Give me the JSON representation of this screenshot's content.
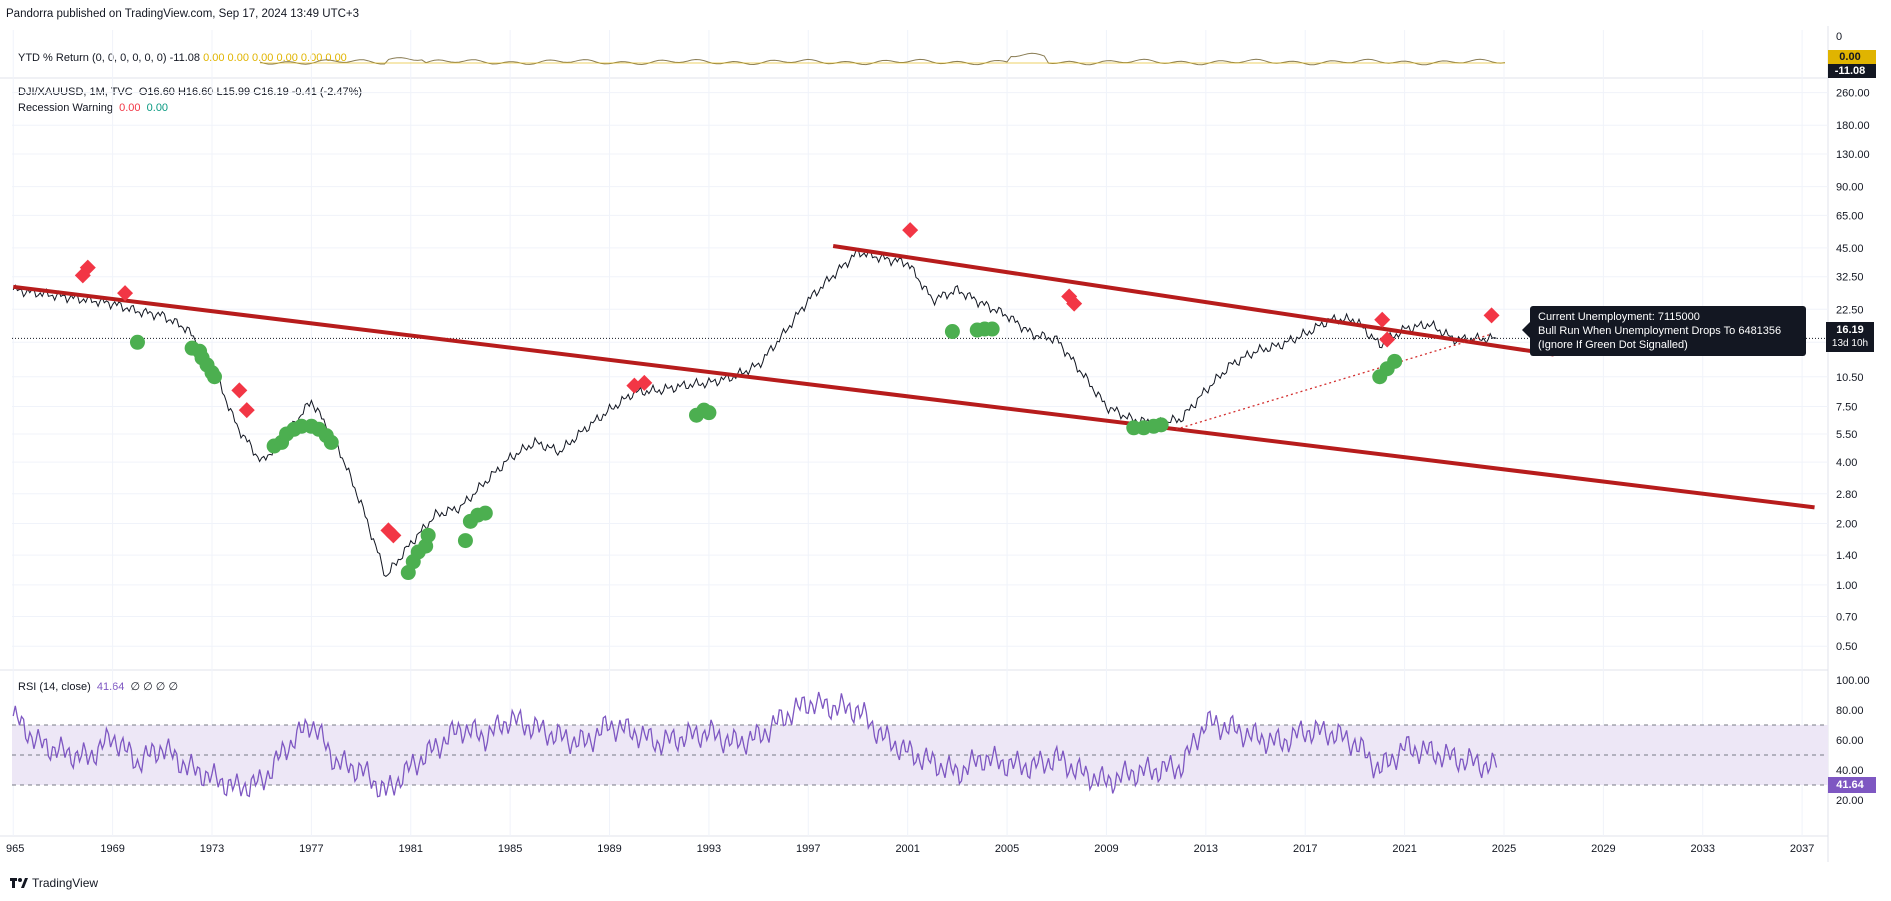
{
  "header": {
    "publisher_line": "Pandorra published on TradingView.com, Sep 17, 2024 13:49 UTC+3"
  },
  "footer": {
    "brand": "TradingView",
    "logo_icon": "tradingview-logo-icon"
  },
  "ytd_pane": {
    "legend_name": "YTD % Return (0, 0, 0, 0, 0, 0)",
    "legend_value": "-11.08",
    "legend_extra": "0.00 0.00 0.00 0.00 0.00 0.00",
    "axis_ticks": [
      "0"
    ],
    "tag_value_top": "0.00",
    "tag_value_bottom": "-11.08",
    "tag_top_color": "#e0b400",
    "tag_bottom_color": "#131722"
  },
  "main_pane": {
    "symbol": "DJI/XAUUSD, 1M, TVC",
    "ohlc": "O16.60  H16.60  L15.99  C16.19  -0.41 (-2.47%)",
    "recession_label": "Recession Warning",
    "recession_val1": "0.00",
    "recession_val2": "0.00",
    "price_tag": "16.19",
    "price_tag_sub": "13d 10h",
    "tooltip_line1": "Current Unemployment: 7115000",
    "tooltip_line2": "Bull Run When Unemployment Drops To 6481356",
    "tooltip_line3": "(Ignore If Green Dot Signalled)"
  },
  "rsi_pane": {
    "legend_name": "RSI (14, close)",
    "legend_value": "41.64",
    "legend_extra": "∅ ∅ ∅ ∅",
    "price_tag": "41.64",
    "axis_ticks": [
      "100.00",
      "80.00",
      "60.00",
      "40.00",
      "20.00"
    ]
  },
  "colors": {
    "channel": "#b71c1c",
    "rsi_line": "#7e57c2",
    "rsi_band": "#ede7f6",
    "warning_red": "#f23645",
    "signal_green": "#4caf50",
    "price": "#131722"
  },
  "chart_data": [
    {
      "type": "line",
      "title": "DJI/XAUUSD, 1M, TVC",
      "scale": "log",
      "y_ticks": [
        "260.00",
        "180.00",
        "130.00",
        "90.00",
        "65.00",
        "45.00",
        "32.50",
        "22.50",
        "15.50",
        "10.50",
        "7.50",
        "5.50",
        "4.00",
        "2.80",
        "2.00",
        "1.40",
        "1.00",
        "0.70",
        "0.50"
      ],
      "x_ticks": [
        "965",
        "1969",
        "1973",
        "1977",
        "1981",
        "1985",
        "1989",
        "1993",
        "1997",
        "2001",
        "2005",
        "2009",
        "2013",
        "2017",
        "2021",
        "2025",
        "2029",
        "2033",
        "2037"
      ],
      "series": [
        {
          "x": [
            1965,
            1966,
            1967,
            1968,
            1969,
            1970,
            1971,
            1972,
            1973,
            1974,
            1975,
            1976,
            1977,
            1978,
            1979,
            1980,
            1981,
            1982,
            1983,
            1984,
            1985,
            1986,
            1987,
            1988,
            1989,
            1990,
            1991,
            1992,
            1993,
            1994,
            1995,
            1996,
            1997,
            1998,
            1999,
            2000,
            2001,
            2002,
            2003,
            2004,
            2005,
            2006,
            2007,
            2008,
            2009,
            2010,
            2011,
            2012,
            2013,
            2014,
            2015,
            2016,
            2017,
            2018,
            2019,
            2020,
            2021,
            2022,
            2023,
            2024.7
          ],
          "y": [
            28,
            27,
            26,
            25,
            24,
            22,
            21,
            18,
            12,
            6,
            4,
            5.5,
            8,
            5,
            2.5,
            1.1,
            1.6,
            2.2,
            2.4,
            3.2,
            4.2,
            5,
            4.5,
            5.8,
            7.2,
            8.8,
            9,
            9.5,
            9.8,
            10.5,
            12,
            17,
            25,
            33,
            43,
            40,
            38,
            25,
            28,
            24,
            21,
            17,
            16,
            11,
            7.5,
            6.5,
            6.2,
            6.5,
            9,
            12,
            14,
            15,
            17,
            20,
            20,
            15,
            18,
            19,
            16,
            16.19
          ]
        }
      ],
      "channel_upper": {
        "x": [
          1998,
          2027
        ],
        "y": [
          46,
          13.5
        ]
      },
      "channel_lower": {
        "x": [
          1965,
          2037.5
        ],
        "y": [
          29,
          2.4
        ]
      },
      "channel_top_left": {
        "x": [
          1965,
          2012
        ],
        "y": [
          29,
          6
        ]
      },
      "support_dotted": {
        "x": [
          2011.8,
          2024.5
        ],
        "y": [
          5.8,
          17
        ]
      },
      "current_price_line": 16.19,
      "warning_markers": [
        {
          "x": 1967.8,
          "y": 33
        },
        {
          "x": 1968,
          "y": 36
        },
        {
          "x": 1969.5,
          "y": 27
        },
        {
          "x": 1974.1,
          "y": 9
        },
        {
          "x": 1974.4,
          "y": 7.2
        },
        {
          "x": 1980.1,
          "y": 1.85
        },
        {
          "x": 1980.3,
          "y": 1.75
        },
        {
          "x": 1990,
          "y": 9.5
        },
        {
          "x": 1990.4,
          "y": 9.8
        },
        {
          "x": 2001.1,
          "y": 55
        },
        {
          "x": 2007.5,
          "y": 26
        },
        {
          "x": 2007.7,
          "y": 24
        },
        {
          "x": 2020.1,
          "y": 20
        },
        {
          "x": 2020.3,
          "y": 16
        },
        {
          "x": 2024.5,
          "y": 21
        }
      ],
      "signal_markers": [
        {
          "x": 1970,
          "y": 15.5
        },
        {
          "x": 1972.2,
          "y": 14.5
        },
        {
          "x": 1972.5,
          "y": 14
        },
        {
          "x": 1972.6,
          "y": 13
        },
        {
          "x": 1972.8,
          "y": 12
        },
        {
          "x": 1973,
          "y": 11
        },
        {
          "x": 1973.1,
          "y": 10.5
        },
        {
          "x": 1975.5,
          "y": 4.8
        },
        {
          "x": 1975.8,
          "y": 5
        },
        {
          "x": 1976,
          "y": 5.5
        },
        {
          "x": 1976.3,
          "y": 5.8
        },
        {
          "x": 1976.6,
          "y": 6
        },
        {
          "x": 1977,
          "y": 6
        },
        {
          "x": 1977.3,
          "y": 5.8
        },
        {
          "x": 1977.6,
          "y": 5.4
        },
        {
          "x": 1977.8,
          "y": 5
        },
        {
          "x": 1980.9,
          "y": 1.15
        },
        {
          "x": 1981.1,
          "y": 1.3
        },
        {
          "x": 1981.3,
          "y": 1.45
        },
        {
          "x": 1981.6,
          "y": 1.55
        },
        {
          "x": 1981.7,
          "y": 1.75
        },
        {
          "x": 1983.2,
          "y": 1.65
        },
        {
          "x": 1983.4,
          "y": 2.05
        },
        {
          "x": 1983.7,
          "y": 2.2
        },
        {
          "x": 1984,
          "y": 2.25
        },
        {
          "x": 1992.5,
          "y": 6.8
        },
        {
          "x": 1992.8,
          "y": 7.2
        },
        {
          "x": 1993,
          "y": 7
        },
        {
          "x": 2002.8,
          "y": 17.5
        },
        {
          "x": 2003.8,
          "y": 17.8
        },
        {
          "x": 2004.1,
          "y": 18
        },
        {
          "x": 2004.4,
          "y": 18
        },
        {
          "x": 2010.1,
          "y": 5.9
        },
        {
          "x": 2010.5,
          "y": 5.9
        },
        {
          "x": 2010.9,
          "y": 6
        },
        {
          "x": 2011.2,
          "y": 6.1
        },
        {
          "x": 2020,
          "y": 10.5
        },
        {
          "x": 2020.3,
          "y": 11.5
        },
        {
          "x": 2020.6,
          "y": 12.5
        }
      ]
    },
    {
      "type": "line",
      "title": "RSI (14, close)",
      "ylim": [
        0,
        100
      ],
      "bands": [
        30,
        50,
        70
      ],
      "series": [
        {
          "x": [
            1965,
            1966,
            1967,
            1968,
            1969,
            1970,
            1971,
            1972,
            1973,
            1974,
            1975,
            1976,
            1977,
            1978,
            1979,
            1980,
            1981,
            1982,
            1983,
            1984,
            1985,
            1986,
            1987,
            1988,
            1989,
            1990,
            1991,
            1992,
            1993,
            1994,
            1995,
            1996,
            1997,
            1998,
            1999,
            2000,
            2001,
            2002,
            2003,
            2004,
            2005,
            2006,
            2007,
            2008,
            2009,
            2010,
            2011,
            2012,
            2013,
            2014,
            2015,
            2016,
            2017,
            2018,
            2019,
            2020,
            2021,
            2022,
            2023,
            2024.7
          ],
          "y": [
            76,
            58,
            52,
            48,
            62,
            45,
            55,
            42,
            35,
            28,
            32,
            55,
            72,
            45,
            40,
            25,
            42,
            55,
            68,
            62,
            74,
            68,
            62,
            58,
            70,
            65,
            58,
            62,
            65,
            58,
            62,
            75,
            85,
            82,
            80,
            62,
            52,
            45,
            38,
            48,
            44,
            42,
            48,
            38,
            32,
            38,
            40,
            42,
            72,
            68,
            62,
            58,
            66,
            65,
            58,
            40,
            55,
            52,
            48,
            41.64
          ]
        }
      ]
    }
  ]
}
